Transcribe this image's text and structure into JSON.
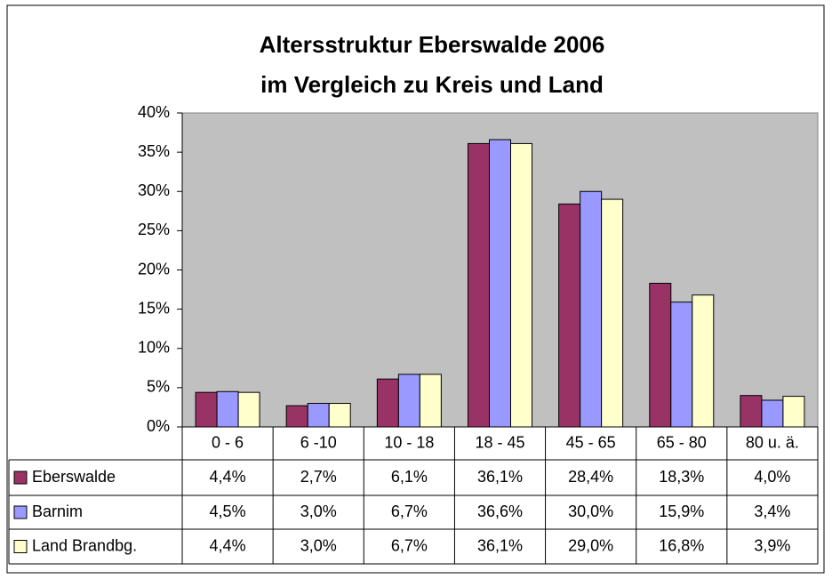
{
  "chart_data": {
    "type": "bar",
    "title": [
      "Altersstruktur Eberswalde 2006",
      "im Vergleich zu Kreis und Land"
    ],
    "categories": [
      "0 - 6",
      "6 -10",
      "10 - 18",
      "18 - 45",
      "45 - 65",
      "65 - 80",
      "80 u. ä."
    ],
    "series": [
      {
        "name": "Eberswalde",
        "color": "#993366",
        "values": [
          4.4,
          2.7,
          6.1,
          36.1,
          28.4,
          18.3,
          4.0
        ],
        "value_labels": [
          "4,4%",
          "2,7%",
          "6,1%",
          "36,1%",
          "28,4%",
          "18,3%",
          "4,0%"
        ]
      },
      {
        "name": "Barnim",
        "color": "#9999ff",
        "values": [
          4.5,
          3.0,
          6.7,
          36.6,
          30.0,
          15.9,
          3.4
        ],
        "value_labels": [
          "4,5%",
          "3,0%",
          "6,7%",
          "36,6%",
          "30,0%",
          "15,9%",
          "3,4%"
        ]
      },
      {
        "name": "Land Brandbg.",
        "color": "#ffffcc",
        "values": [
          4.4,
          3.0,
          6.7,
          36.1,
          29.0,
          16.8,
          3.9
        ],
        "value_labels": [
          "4,4%",
          "3,0%",
          "6,7%",
          "36,1%",
          "29,0%",
          "16,8%",
          "3,9%"
        ]
      }
    ],
    "ylim": [
      0,
      40
    ],
    "yticks": [
      {
        "value": 0,
        "label": "0%"
      },
      {
        "value": 5,
        "label": "5%"
      },
      {
        "value": 10,
        "label": "10%"
      },
      {
        "value": 15,
        "label": "15%"
      },
      {
        "value": 20,
        "label": "20%"
      },
      {
        "value": 25,
        "label": "25%"
      },
      {
        "value": 30,
        "label": "30%"
      },
      {
        "value": 35,
        "label": "35%"
      },
      {
        "value": 40,
        "label": "40%"
      }
    ],
    "grid": false,
    "plot_background": "#c0c0c0"
  }
}
